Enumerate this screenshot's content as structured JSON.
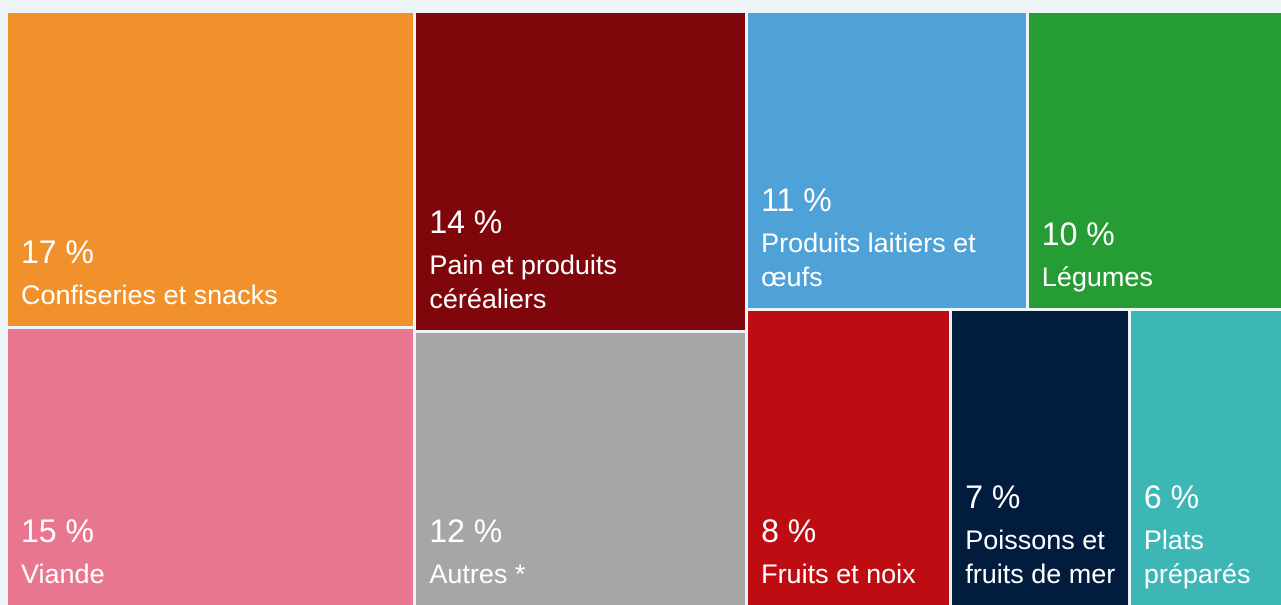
{
  "chart_data": {
    "type": "treemap",
    "categories": [
      "Confiseries et snacks",
      "Viande",
      "Pain et produits céréaliers",
      "Autres *",
      "Produits laitiers et œufs",
      "Légumes",
      "Fruits et noix",
      "Poissons et fruits de mer",
      "Plats préparés"
    ],
    "values": [
      17,
      15,
      14,
      12,
      11,
      10,
      8,
      7,
      6
    ],
    "value_labels": [
      "17 %",
      "15 %",
      "14 %",
      "12 %",
      "11 %",
      "10 %",
      "8 %",
      "7 %",
      "6 %"
    ],
    "colors": [
      "#f0912c",
      "#e8768e",
      "#7f060b",
      "#a6a6a6",
      "#4ea2d8",
      "#259c34",
      "#bd0d12",
      "#011c3d",
      "#3cb7b6"
    ]
  }
}
